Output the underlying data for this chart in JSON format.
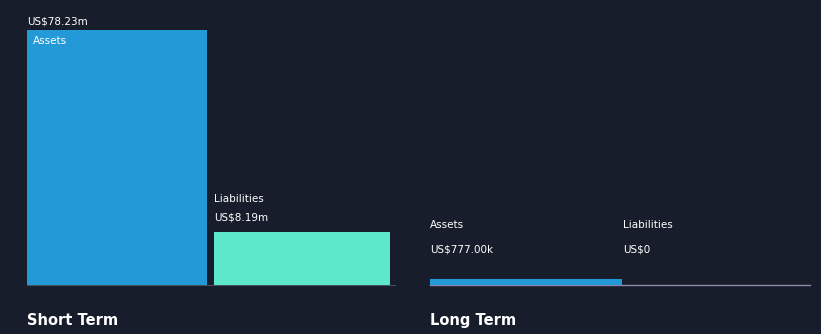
{
  "bg_color": "#181d2b",
  "short_term_assets_value": 78.23,
  "short_term_assets_label": "US$78.23m",
  "short_term_assets_bar_color": "#2499d8",
  "short_term_liabilities_value": 8.19,
  "short_term_liabilities_label": "US$8.19m",
  "short_term_liabilities_bar_color": "#5de8cc",
  "long_term_assets_value": 0.777,
  "long_term_assets_label": "US$777.00k",
  "long_term_assets_bar_color": "#2499d8",
  "long_term_liabilities_value": 0,
  "long_term_liabilities_label": "US$0",
  "short_term_label": "Short Term",
  "long_term_label": "Long Term",
  "assets_text": "Assets",
  "liabilities_text": "Liabilities",
  "text_color": "#ffffff",
  "baseline_color": "#3a3f50",
  "lt_baseline_color": "#aaaacc"
}
